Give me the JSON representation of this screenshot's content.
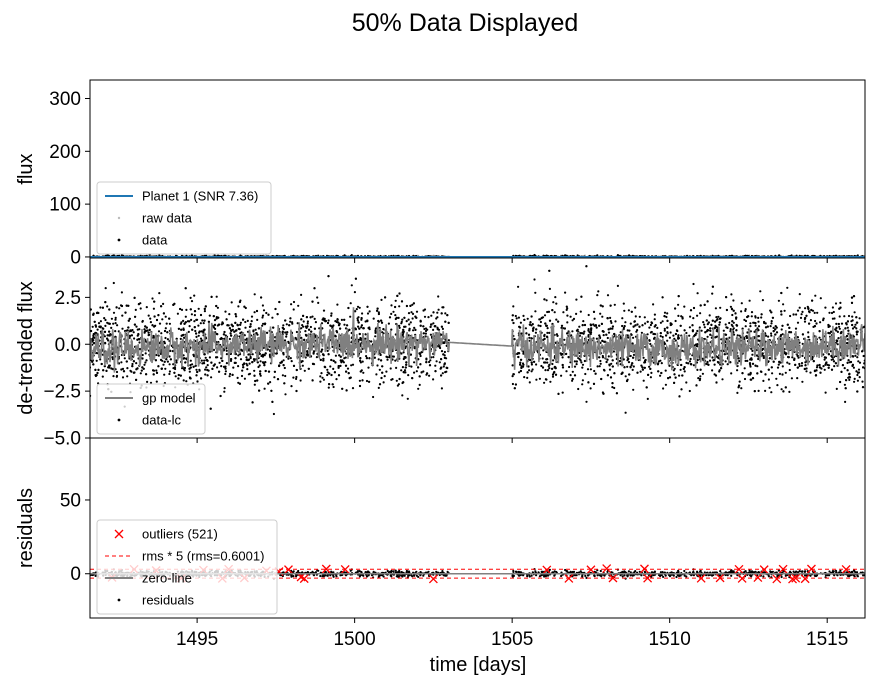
{
  "figure": {
    "title": "50% Data Displayed",
    "xlabel": "time [days]"
  },
  "chart_data": [
    {
      "type": "scatter",
      "panel": "flux",
      "ylabel": "flux",
      "xlim": [
        1491.6,
        1516.2
      ],
      "ylim": [
        -2,
        335
      ],
      "yticks": [
        0,
        100,
        200,
        300
      ],
      "ytick_labels": [
        "0",
        "100",
        "200",
        "300"
      ],
      "grid": false,
      "legend_position": "lower-left",
      "gaps": [
        [
          1503.0,
          1505.0
        ]
      ],
      "series": [
        {
          "name": "Planet 1 (SNR 7.36)",
          "kind": "line",
          "color": "#1f77b4",
          "x": [
            1491.6,
            1516.2
          ],
          "y": [
            0,
            0
          ]
        },
        {
          "name": "raw data",
          "kind": "points",
          "color": "#bbbbbb",
          "x_range": [
            1491.6,
            1516.2
          ],
          "y_center": 0
        },
        {
          "name": "data",
          "kind": "points",
          "color": "#000000",
          "x_range": [
            1491.6,
            1516.2
          ],
          "y_center": 0
        }
      ]
    },
    {
      "type": "scatter",
      "panel": "detrended",
      "ylabel": "de-trended flux",
      "xlim": [
        1491.6,
        1516.2
      ],
      "ylim": [
        -5.0,
        4.6
      ],
      "yticks": [
        2.5,
        0.0,
        -2.5,
        -5.0
      ],
      "ytick_labels": [
        "2.5",
        "0.0",
        "−2.5",
        "−5.0"
      ],
      "grid": false,
      "legend_position": "lower-left",
      "gaps": [
        [
          1503.0,
          1505.0
        ]
      ],
      "series": [
        {
          "name": "gp model",
          "kind": "line",
          "color": "#808080",
          "x": [
            1491.6,
            1497.0,
            1503.0,
            1505.0,
            1510.0,
            1516.2
          ],
          "y": [
            -0.3,
            0.0,
            0.1,
            -0.1,
            -0.3,
            0.0
          ]
        },
        {
          "name": "data-lc",
          "kind": "points",
          "color": "#000000",
          "x_range": [
            1491.6,
            1516.2
          ],
          "y_center": 0,
          "y_spread": 1.1
        }
      ]
    },
    {
      "type": "scatter",
      "panel": "residuals",
      "ylabel": "residuals",
      "xlim": [
        1491.6,
        1516.2
      ],
      "ylim": [
        -30,
        92
      ],
      "yticks": [
        0,
        50
      ],
      "ytick_labels": [
        "0",
        "50"
      ],
      "xticks": [
        1495,
        1500,
        1505,
        1510,
        1515
      ],
      "xtick_labels": [
        "1495",
        "1500",
        "1505",
        "1510",
        "1515"
      ],
      "grid": false,
      "legend_position": "lower-left",
      "gaps": [
        [
          1503.0,
          1505.0
        ]
      ],
      "rms_band": [
        -3.0,
        3.0
      ],
      "series": [
        {
          "name": "outliers (521)",
          "kind": "markers",
          "color": "#ff0000",
          "x": [
            1492.3,
            1493.0,
            1493.7,
            1494.5,
            1495.2,
            1495.8,
            1496.0,
            1496.5,
            1497.2,
            1497.6,
            1497.9,
            1498.3,
            1498.4,
            1499.1,
            1499.7,
            1502.5,
            1506.1,
            1506.8,
            1507.5,
            1508.0,
            1508.2,
            1509.2,
            1509.3,
            1511.0,
            1511.6,
            1512.2,
            1512.3,
            1512.8,
            1513.0,
            1513.4,
            1513.6,
            1513.9,
            1514.0,
            1514.3,
            1514.5,
            1515.6
          ],
          "y": [
            -2.5,
            3.0,
            2.2,
            -3.0,
            2.5,
            -3.2,
            3.1,
            -2.8,
            2.0,
            1.5,
            2.8,
            -2.2,
            -3.3,
            3.2,
            2.9,
            -3.5,
            2.6,
            -3.2,
            2.7,
            3.5,
            -2.9,
            3.3,
            -3.0,
            -3.1,
            -2.8,
            3.0,
            -3.2,
            -2.6,
            2.8,
            -3.5,
            3.1,
            -3.6,
            -3.0,
            -3.4,
            3.2,
            2.9
          ]
        },
        {
          "name": "rms * 5 (rms=0.6001)",
          "kind": "dashed-line",
          "color": "#ff0000",
          "y_values": [
            3.0,
            -3.0
          ]
        },
        {
          "name": "zero-line",
          "kind": "line",
          "color": "#808080",
          "x": [
            1491.6,
            1516.2
          ],
          "y": [
            0,
            0
          ]
        },
        {
          "name": "residuals",
          "kind": "points",
          "color": "#000000",
          "x_range": [
            1491.6,
            1516.2
          ],
          "y_center": 0
        }
      ]
    }
  ]
}
